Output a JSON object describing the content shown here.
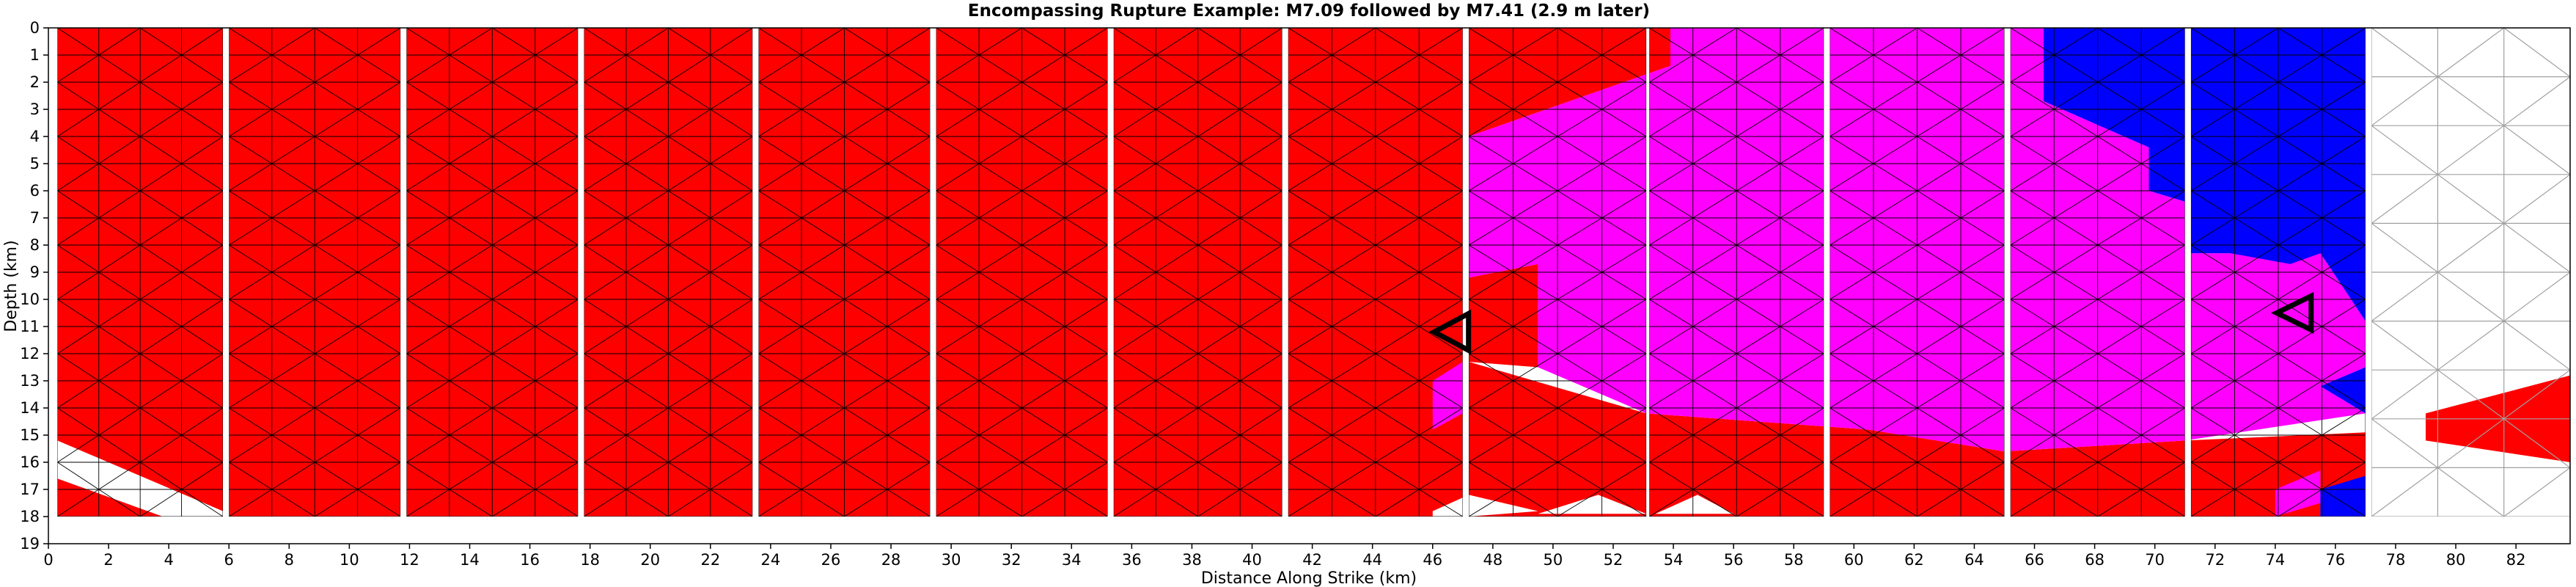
{
  "chart_data": {
    "type": "heatmap",
    "title": "Encompassing Rupture Example: M7.09 followed by M7.41 (2.9 m later)",
    "xlabel": "Distance Along Strike (km)",
    "ylabel": "Depth (km)",
    "xlim": [
      0,
      83.8
    ],
    "ylim": [
      19,
      0
    ],
    "y_inverted": true,
    "x_ticks": [
      0,
      2,
      4,
      6,
      8,
      10,
      12,
      14,
      16,
      18,
      20,
      22,
      24,
      26,
      28,
      30,
      32,
      34,
      36,
      38,
      40,
      42,
      44,
      46,
      48,
      50,
      52,
      54,
      56,
      58,
      60,
      62,
      64,
      66,
      68,
      70,
      72,
      74,
      76,
      78,
      80,
      82
    ],
    "y_ticks": [
      0,
      1,
      2,
      3,
      4,
      5,
      6,
      7,
      8,
      9,
      10,
      11,
      12,
      13,
      14,
      15,
      16,
      17,
      18,
      19
    ],
    "grid": false,
    "legend": "none",
    "colors": {
      "first_event": "#ff0000",
      "second_event": "#ff00ff",
      "both_events": "#0000ff",
      "unruptured": "#ffffff",
      "element_edge": "#000000",
      "unruptured_edge": "#a0a0a0",
      "hypocenter_marker": "#000000"
    },
    "fault_sections_km": [
      [
        0.3,
        5.8
      ],
      [
        6.0,
        11.7
      ],
      [
        11.9,
        17.6
      ],
      [
        17.8,
        23.4
      ],
      [
        23.6,
        29.3
      ],
      [
        29.5,
        35.2
      ],
      [
        35.4,
        41.0
      ],
      [
        41.2,
        47.0
      ],
      [
        47.2,
        53.1
      ],
      [
        53.2,
        59.0
      ],
      [
        59.2,
        65.0
      ],
      [
        65.2,
        71.0
      ],
      [
        71.2,
        77.0
      ],
      [
        77.2,
        83.8
      ]
    ],
    "depth_extent_km": [
      0,
      18
    ],
    "rupture_patches": [
      {
        "event": "first",
        "polygon": [
          [
            0.3,
            0
          ],
          [
            47.0,
            0
          ],
          [
            47.0,
            18
          ],
          [
            0.3,
            18
          ]
        ]
      },
      {
        "event": "first",
        "polygon": [
          [
            47.2,
            0
          ],
          [
            53.9,
            0
          ],
          [
            53.9,
            1.4
          ],
          [
            47.2,
            4.0
          ]
        ]
      },
      {
        "event": "first",
        "polygon": [
          [
            47.2,
            9.2
          ],
          [
            49.5,
            8.7
          ],
          [
            49.5,
            12.5
          ],
          [
            47.2,
            12.3
          ]
        ]
      },
      {
        "event": "first",
        "polygon": [
          [
            47.2,
            12.3
          ],
          [
            53.1,
            14.2
          ],
          [
            60.5,
            14.8
          ],
          [
            65.0,
            15.6
          ],
          [
            71.0,
            15.2
          ],
          [
            77.0,
            14.9
          ],
          [
            77.0,
            18
          ],
          [
            47.2,
            18
          ]
        ]
      },
      {
        "event": "first",
        "polygon": [
          [
            79.0,
            14.2
          ],
          [
            83.8,
            12.8
          ],
          [
            83.8,
            16.0
          ],
          [
            79.0,
            15.2
          ]
        ]
      },
      {
        "event": "second",
        "polygon": [
          [
            53.9,
            0
          ],
          [
            66.3,
            0
          ],
          [
            66.3,
            2.7
          ],
          [
            69.8,
            4.4
          ],
          [
            69.8,
            6.0
          ],
          [
            71.0,
            6.4
          ],
          [
            71.2,
            8.3
          ],
          [
            72.5,
            8.3
          ],
          [
            74.5,
            8.3
          ],
          [
            75.5,
            8.3
          ],
          [
            77.0,
            10.8
          ],
          [
            77.0,
            12.5
          ],
          [
            75.5,
            13.2
          ],
          [
            77.0,
            14.2
          ],
          [
            71.0,
            15.2
          ],
          [
            65.0,
            15.6
          ],
          [
            60.5,
            14.8
          ],
          [
            53.1,
            14.2
          ],
          [
            49.5,
            12.5
          ],
          [
            49.5,
            8.7
          ],
          [
            47.2,
            9.2
          ],
          [
            47.2,
            4.0
          ],
          [
            53.9,
            1.4
          ]
        ]
      },
      {
        "event": "second",
        "polygon": [
          [
            46.0,
            13.0
          ],
          [
            47.0,
            12.3
          ],
          [
            47.0,
            14.2
          ],
          [
            46.0,
            14.8
          ]
        ]
      },
      {
        "event": "second",
        "polygon": [
          [
            74.0,
            17.0
          ],
          [
            75.5,
            16.3
          ],
          [
            75.5,
            17.5
          ],
          [
            74.0,
            18
          ]
        ]
      },
      {
        "event": "both",
        "polygon": [
          [
            66.3,
            0
          ],
          [
            77.0,
            0
          ],
          [
            77.0,
            10.8
          ],
          [
            75.5,
            8.3
          ],
          [
            74.5,
            8.7
          ],
          [
            72.5,
            8.3
          ],
          [
            71.2,
            8.3
          ],
          [
            71.0,
            6.4
          ],
          [
            69.8,
            6.0
          ],
          [
            69.8,
            4.4
          ],
          [
            66.3,
            2.7
          ]
        ]
      },
      {
        "event": "both",
        "polygon": [
          [
            75.5,
            13.2
          ],
          [
            77.0,
            12.5
          ],
          [
            77.0,
            14.2
          ]
        ]
      },
      {
        "event": "both",
        "polygon": [
          [
            75.5,
            17.0
          ],
          [
            77.0,
            16.5
          ],
          [
            77.0,
            18
          ],
          [
            75.5,
            18
          ]
        ]
      }
    ],
    "unruptured_patches": [
      {
        "polygon": [
          [
            0.3,
            15.2
          ],
          [
            5.8,
            17.8
          ],
          [
            5.8,
            18
          ],
          [
            3.8,
            18
          ],
          [
            0.3,
            16.6
          ]
        ]
      },
      {
        "polygon": [
          [
            46.0,
            17.8
          ],
          [
            47.0,
            17.3
          ],
          [
            47.0,
            18
          ],
          [
            46.0,
            18
          ]
        ]
      },
      {
        "polygon": [
          [
            47.2,
            17.2
          ],
          [
            49.5,
            17.8
          ],
          [
            47.2,
            18
          ]
        ]
      },
      {
        "polygon": [
          [
            49.5,
            17.9
          ],
          [
            51.5,
            17.2
          ],
          [
            53.1,
            17.9
          ]
        ]
      },
      {
        "polygon": [
          [
            53.4,
            17.9
          ],
          [
            54.8,
            17.2
          ],
          [
            56.0,
            17.9
          ]
        ]
      }
    ],
    "hypocenters": [
      {
        "event": "first",
        "x": 46.9,
        "y": 11.2
      },
      {
        "event": "second",
        "x": 74.9,
        "y": 10.5
      }
    ]
  }
}
